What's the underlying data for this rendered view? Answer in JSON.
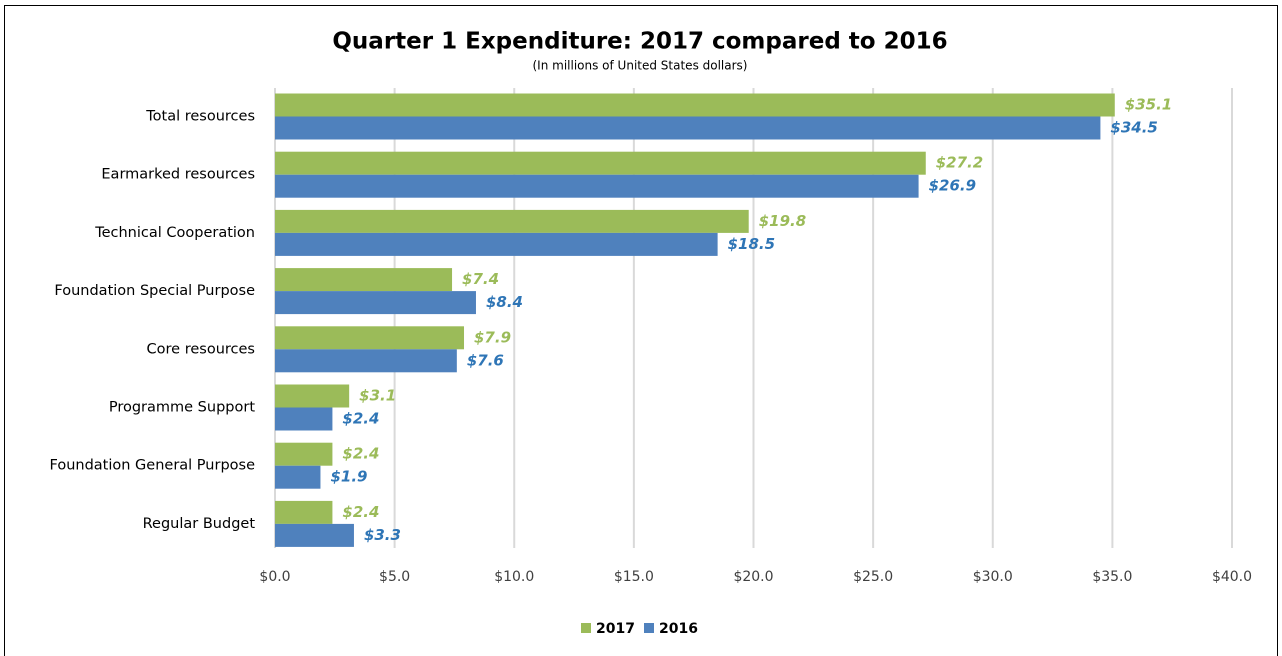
{
  "chart_data": {
    "type": "hbar",
    "title": "Quarter 1 Expenditure: 2017 compared to 2016",
    "subtitle": "(In millions of United States dollars)",
    "categories": [
      "Total resources",
      "Earmarked resources",
      "Technical Cooperation",
      "Foundation Special Purpose",
      "Core resources",
      "Programme Support",
      "Foundation General Purpose",
      "Regular Budget"
    ],
    "series": [
      {
        "name": "2017",
        "color": "#9bbb59",
        "label_color": "#9bbb59",
        "values": [
          35.1,
          27.2,
          19.8,
          7.4,
          7.9,
          3.1,
          2.4,
          2.4
        ],
        "value_labels": [
          "$35.1",
          "$27.2",
          "$19.8",
          "$7.4",
          "$7.9",
          "$3.1",
          "$2.4",
          "$2.4"
        ]
      },
      {
        "name": "2016",
        "color": "#4f81bd",
        "label_color": "#2e75b6",
        "values": [
          34.5,
          26.9,
          18.5,
          8.4,
          7.6,
          2.4,
          1.9,
          3.3
        ],
        "value_labels": [
          "$34.5",
          "$26.9",
          "$18.5",
          "$8.4",
          "$7.6",
          "$2.4",
          "$1.9",
          "$3.3"
        ]
      }
    ],
    "xlim": [
      0,
      40
    ],
    "xticks": [
      {
        "value": 0,
        "label": "$0.0"
      },
      {
        "value": 5,
        "label": "$5.0"
      },
      {
        "value": 10,
        "label": "$10.0"
      },
      {
        "value": 15,
        "label": "$15.0"
      },
      {
        "value": 20,
        "label": "$20.0"
      },
      {
        "value": 25,
        "label": "$25.0"
      },
      {
        "value": 30,
        "label": "$30.0"
      },
      {
        "value": 35,
        "label": "$35.0"
      },
      {
        "value": 40,
        "label": "$40.0"
      }
    ],
    "grid": true,
    "legend": "bottom"
  }
}
